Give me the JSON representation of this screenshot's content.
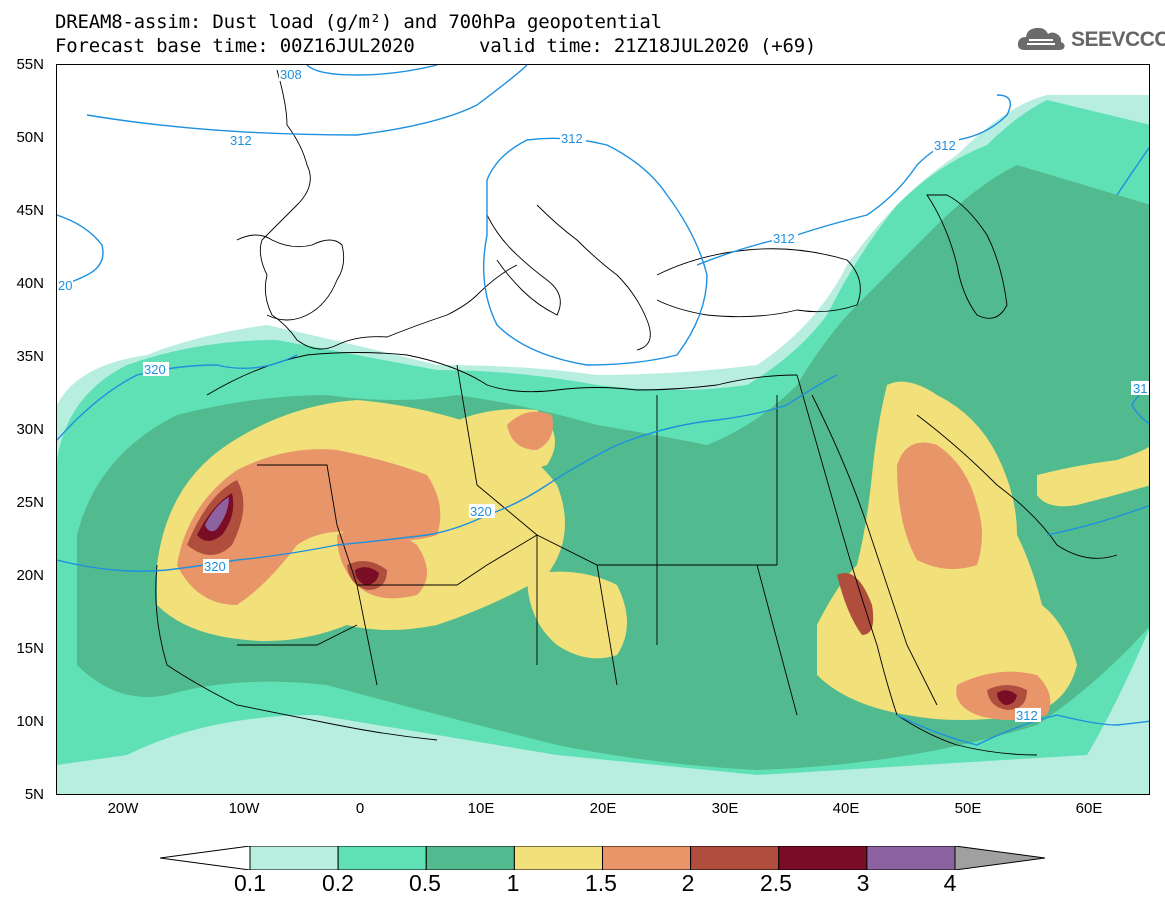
{
  "title": {
    "line1": "DREAM8-assim: Dust load (g/m²) and 700hPa geopotential",
    "base_time": "Forecast base time: 00Z16JUL2020",
    "valid_time": "valid time: 21Z18JUL2020 (+69)"
  },
  "logo": {
    "text": "SEEVCCC",
    "icon": "cloud-icon"
  },
  "map": {
    "lat_labels": [
      "55N",
      "50N",
      "45N",
      "40N",
      "35N",
      "30N",
      "25N",
      "20N",
      "15N",
      "10N",
      "5N"
    ],
    "lon_labels": [
      "20W",
      "10W",
      "0",
      "10E",
      "20E",
      "30E",
      "40E",
      "50E",
      "60E"
    ],
    "contour_labels": [
      "312",
      "312",
      "312",
      "312",
      "312",
      "320",
      "320",
      "320",
      "20",
      "308",
      "31"
    ],
    "geopotential_levels": [
      312,
      320
    ],
    "extent": {
      "lon": [
        -25,
        65
      ],
      "lat": [
        5,
        55
      ]
    }
  },
  "colorbar": {
    "labels": [
      "0.1",
      "0.2",
      "0.5",
      "1",
      "1.5",
      "2",
      "2.5",
      "3",
      "4"
    ],
    "colors": [
      "#b7eee0",
      "#5fe1b5",
      "#52ba8f",
      "#f2e07a",
      "#e8956a",
      "#b04e3e",
      "#7a0d25",
      "#8c63a0",
      "#a0a0a0"
    ],
    "under_color": "#ffffff"
  }
}
